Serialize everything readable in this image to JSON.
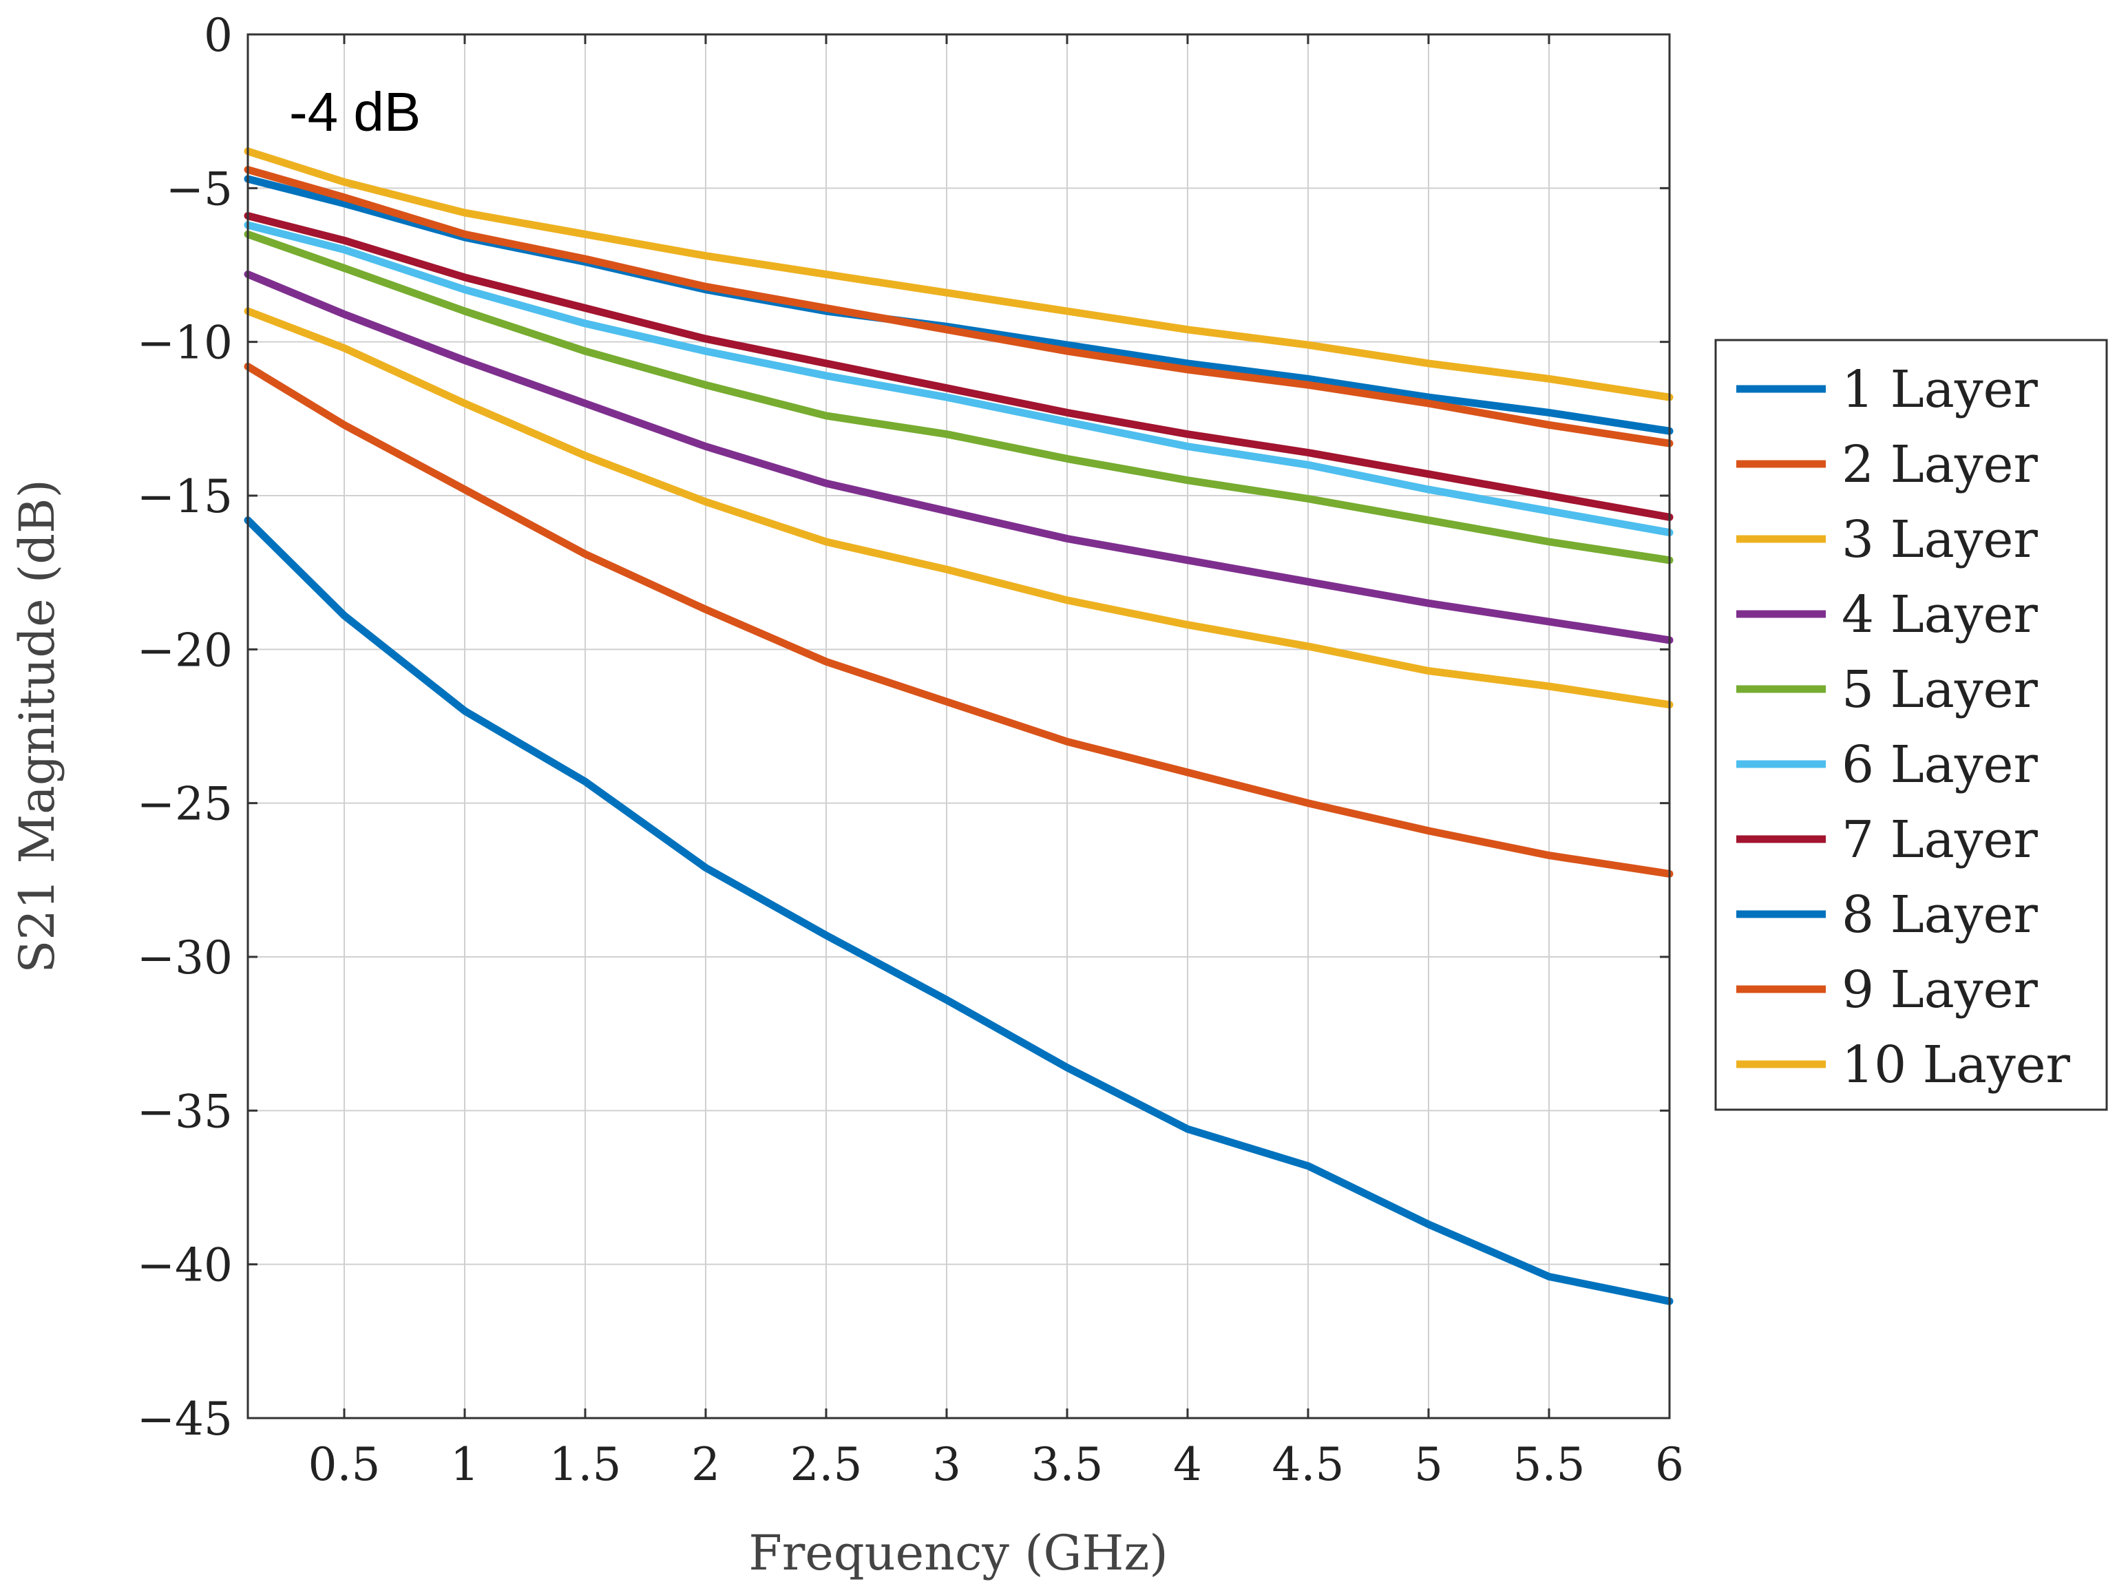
{
  "chart_data": {
    "type": "line",
    "title": "",
    "xlabel": "Frequency (GHz)",
    "ylabel": "S21 Magnitude (dB)",
    "xlim": [
      0.1,
      6
    ],
    "ylim": [
      -45,
      0
    ],
    "x_ticks": [
      0.5,
      1,
      1.5,
      2,
      2.5,
      3,
      3.5,
      4,
      4.5,
      5,
      5.5,
      6
    ],
    "x_tick_labels": [
      "0.5",
      "1",
      "1.5",
      "2",
      "2.5",
      "3",
      "3.5",
      "4",
      "4.5",
      "5",
      "5.5",
      "6"
    ],
    "y_ticks": [
      0,
      -5,
      -10,
      -15,
      -20,
      -25,
      -30,
      -35,
      -40,
      -45
    ],
    "y_tick_labels": [
      "0",
      "−5",
      "−10",
      "−15",
      "−20",
      "−25",
      "−30",
      "−35",
      "−40",
      "−45"
    ],
    "grid": true,
    "legend_position": "right",
    "annotation": "-4 dB",
    "x": [
      0.1,
      0.5,
      1,
      1.5,
      2,
      2.5,
      3,
      3.5,
      4,
      4.5,
      5,
      5.5,
      6
    ],
    "series": [
      {
        "name": "1 Layer",
        "color": "#0072BD",
        "values": [
          -4.7,
          -5.5,
          -6.6,
          -7.4,
          -8.3,
          -9.0,
          -9.5,
          -10.1,
          -10.7,
          -11.2,
          -11.8,
          -12.3,
          -12.9
        ]
      },
      {
        "name": "2 Layer",
        "color": "#D95319",
        "values": [
          -4.4,
          -5.3,
          -6.5,
          -7.3,
          -8.2,
          -8.9,
          -9.6,
          -10.3,
          -10.9,
          -11.4,
          -12.0,
          -12.7,
          -13.3
        ]
      },
      {
        "name": "3 Layer",
        "color": "#EDB120",
        "values": [
          -3.8,
          -4.8,
          -5.8,
          -6.5,
          -7.2,
          -7.8,
          -8.4,
          -9.0,
          -9.6,
          -10.1,
          -10.7,
          -11.2,
          -11.8
        ]
      },
      {
        "name": "4 Layer",
        "color": "#7E2F8E",
        "values": [
          -7.8,
          -9.1,
          -10.6,
          -12.0,
          -13.4,
          -14.6,
          -15.5,
          -16.4,
          -17.1,
          -17.8,
          -18.5,
          -19.1,
          -19.7
        ]
      },
      {
        "name": "5 Layer",
        "color": "#77AC30",
        "values": [
          -6.5,
          -7.6,
          -9.0,
          -10.3,
          -11.4,
          -12.4,
          -13.0,
          -13.8,
          -14.5,
          -15.1,
          -15.8,
          -16.5,
          -17.1
        ]
      },
      {
        "name": "6 Layer",
        "color": "#4DBEEE",
        "values": [
          -6.2,
          -7.0,
          -8.3,
          -9.4,
          -10.3,
          -11.1,
          -11.8,
          -12.6,
          -13.4,
          -14.0,
          -14.8,
          -15.5,
          -16.2
        ]
      },
      {
        "name": "7 Layer",
        "color": "#A2142F",
        "values": [
          -5.9,
          -6.7,
          -7.9,
          -8.9,
          -9.9,
          -10.7,
          -11.5,
          -12.3,
          -13.0,
          -13.6,
          -14.3,
          -15.0,
          -15.7
        ]
      },
      {
        "name": "8 Layer",
        "color": "#0072BD",
        "values": [
          -15.8,
          -18.9,
          -22.0,
          -24.3,
          -27.1,
          -29.3,
          -31.4,
          -33.6,
          -35.6,
          -36.8,
          -38.7,
          -40.4,
          -41.2
        ]
      },
      {
        "name": "9 Layer",
        "color": "#D95319",
        "values": [
          -10.8,
          -12.7,
          -14.8,
          -16.9,
          -18.7,
          -20.4,
          -21.7,
          -23.0,
          -24.0,
          -25.0,
          -25.9,
          -26.7,
          -27.3
        ]
      },
      {
        "name": "10 Layer",
        "color": "#EDB120",
        "values": [
          -9.0,
          -10.2,
          -12.0,
          -13.7,
          -15.2,
          -16.5,
          -17.4,
          -18.4,
          -19.2,
          -19.9,
          -20.7,
          -21.2,
          -21.8
        ]
      }
    ]
  }
}
